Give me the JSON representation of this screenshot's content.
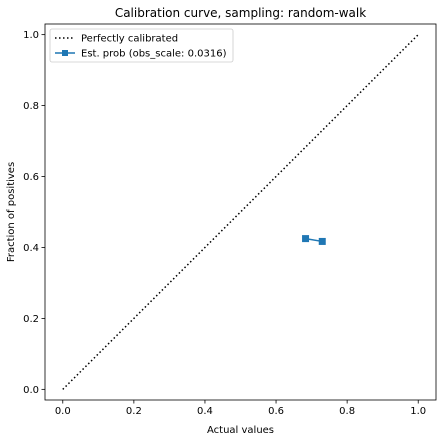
{
  "chart_data": {
    "type": "line",
    "title": "Calibration curve, sampling: random-walk",
    "xlabel": "Actual values",
    "ylabel": "Fraction of positives",
    "xlim": [
      -0.05,
      1.05
    ],
    "ylim": [
      -0.03,
      1.03
    ],
    "xticks": [
      0.0,
      0.2,
      0.4,
      0.6,
      0.8,
      1.0
    ],
    "yticks": [
      0.0,
      0.2,
      0.4,
      0.6,
      0.8,
      1.0
    ],
    "xtick_labels": [
      "0.0",
      "0.2",
      "0.4",
      "0.6",
      "0.8",
      "1.0"
    ],
    "ytick_labels": [
      "0.0",
      "0.2",
      "0.4",
      "0.6",
      "0.8",
      "1.0"
    ],
    "grid": false,
    "legend_position": "top-left",
    "series": [
      {
        "name": "Perfectly calibrated",
        "style": "dotted",
        "color": "#000000",
        "x": [
          0.0,
          1.0
        ],
        "y": [
          0.0,
          1.0
        ]
      },
      {
        "name": "Est. prob (obs_scale: 0.0316)",
        "style": "solid-square-marker",
        "color": "#1f77b4",
        "x": [
          0.683,
          0.73
        ],
        "y": [
          0.425,
          0.417
        ]
      }
    ]
  }
}
